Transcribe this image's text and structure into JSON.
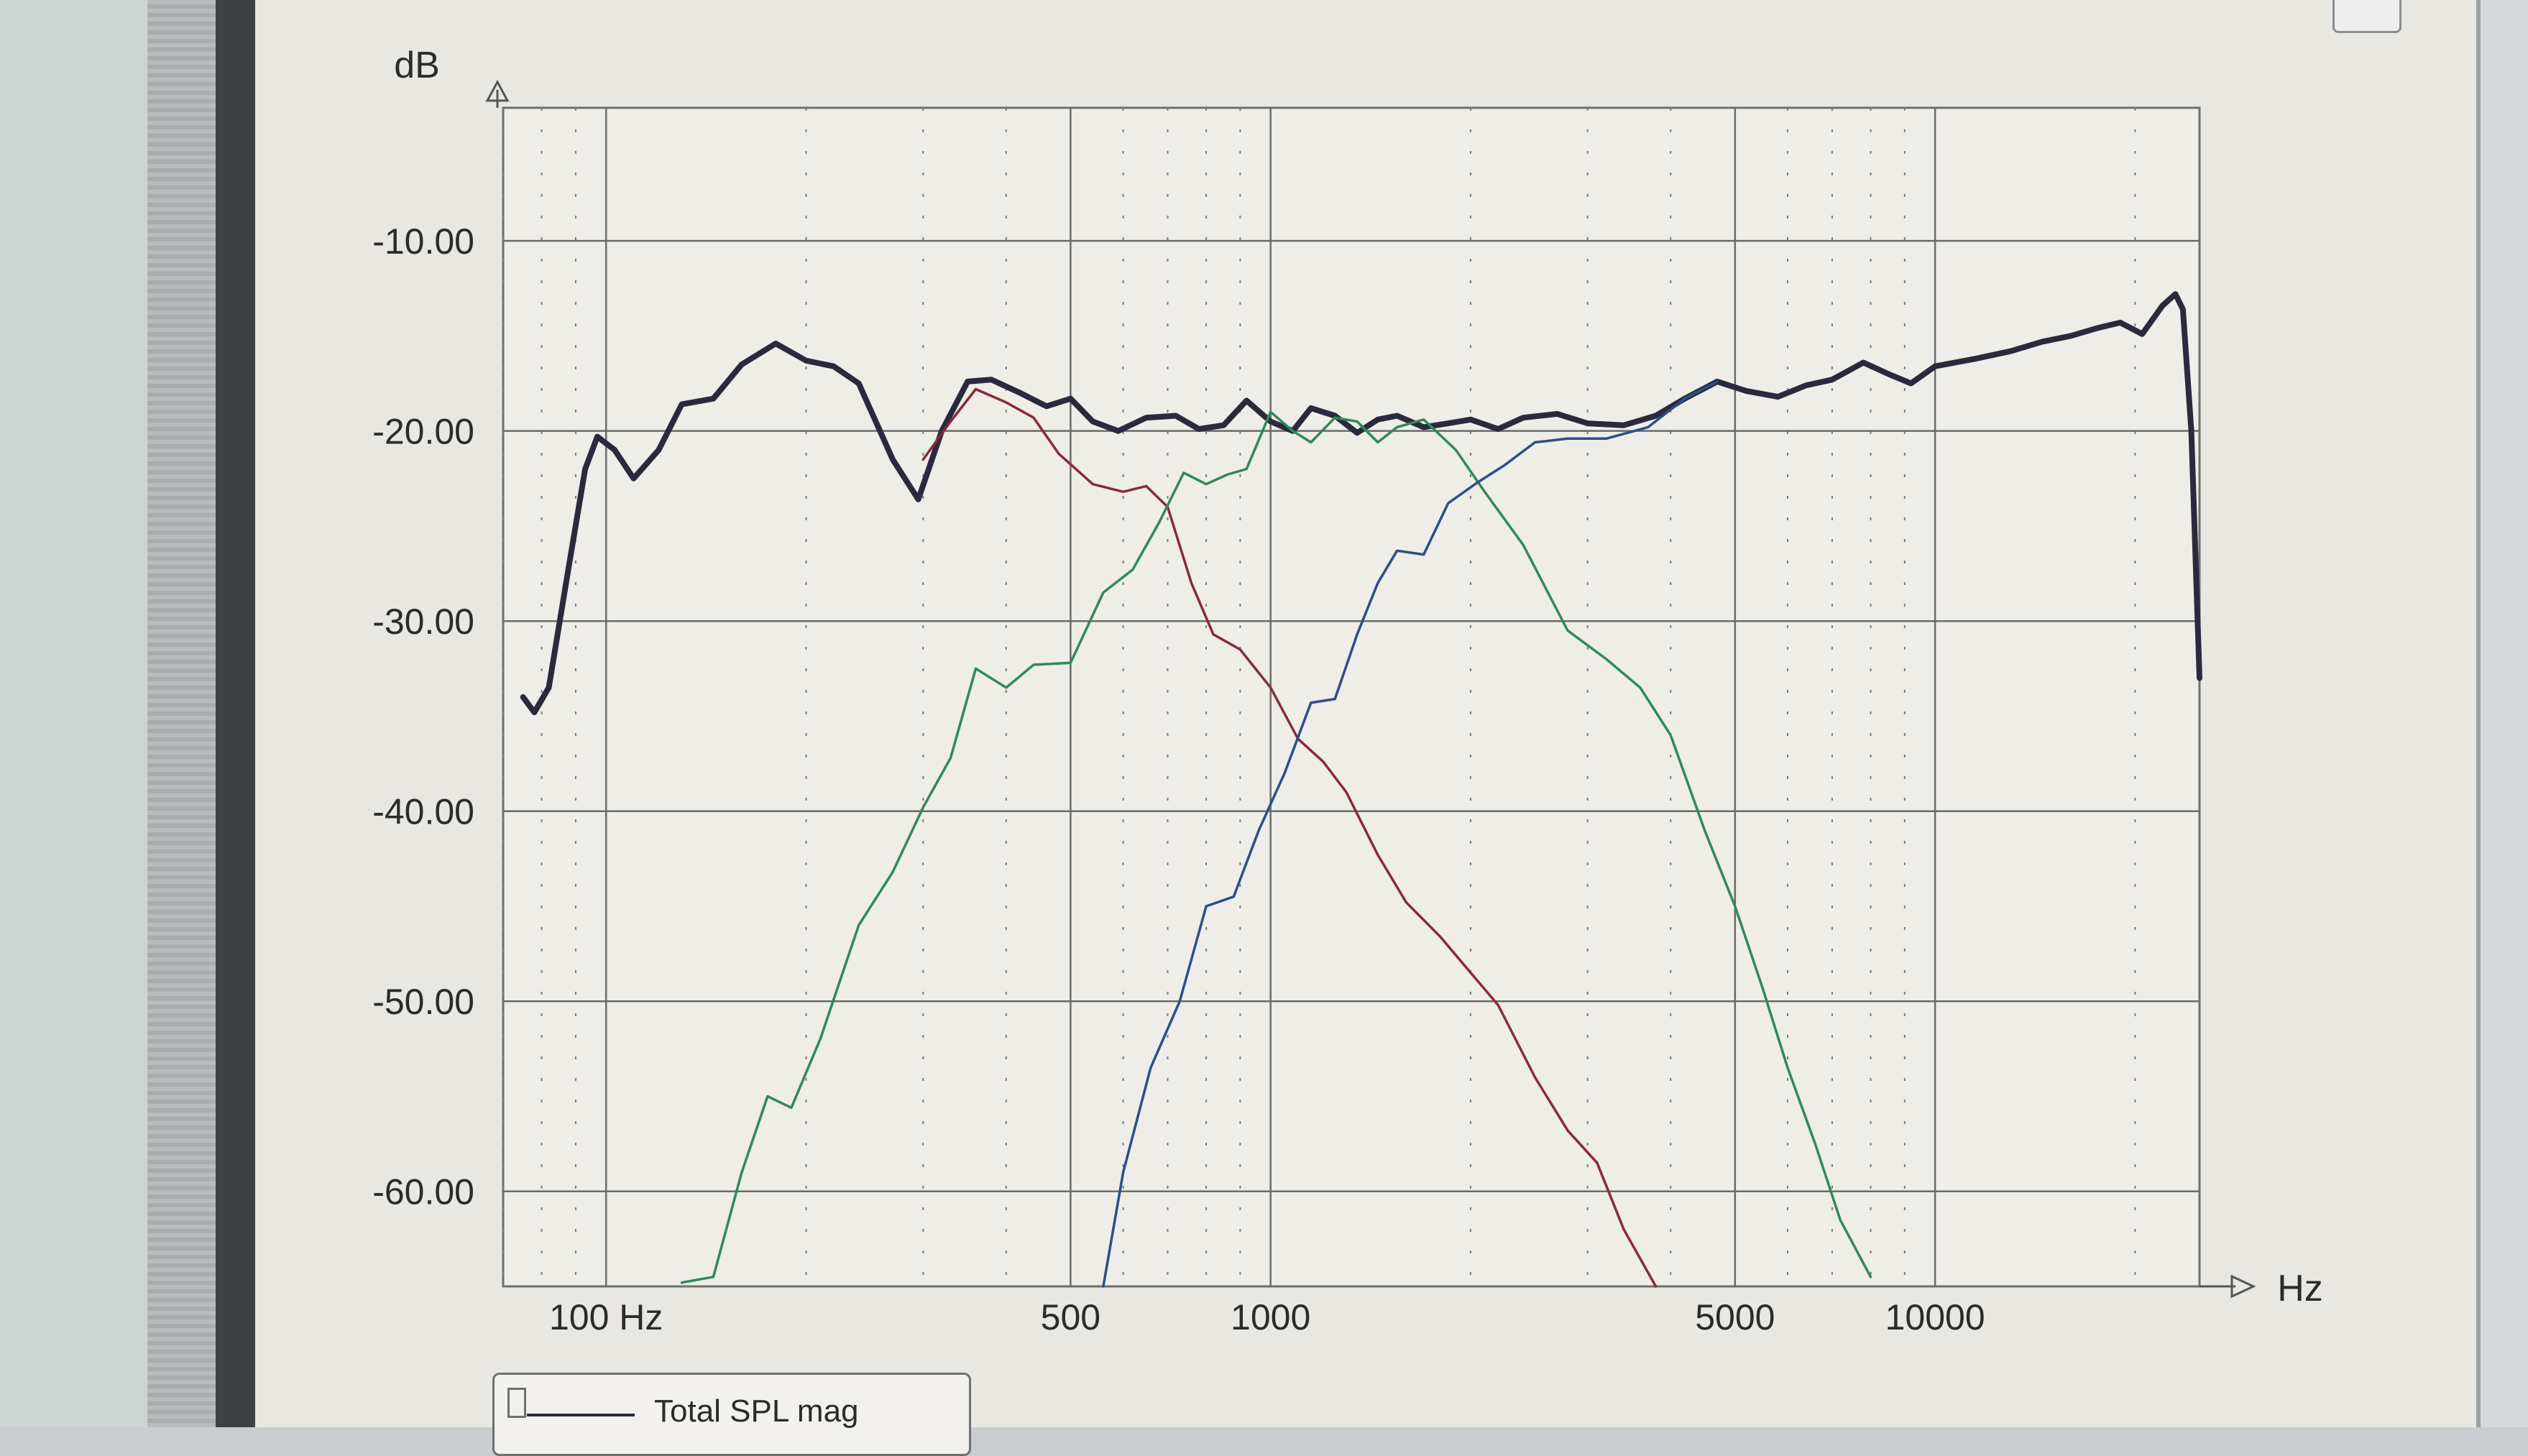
{
  "chart_data": {
    "type": "line",
    "title": "",
    "xlabel": "Hz",
    "ylabel": "dB",
    "x_scale": "log",
    "xlim": [
      70,
      25000
    ],
    "ylim": [
      -65,
      -3
    ],
    "x_ticks": [
      100,
      500,
      1000,
      5000,
      10000
    ],
    "x_tick_labels": [
      "100 Hz",
      "500",
      "1000",
      "5000",
      "10000"
    ],
    "y_ticks": [
      -10,
      -20,
      -30,
      -40,
      -50,
      -60
    ],
    "y_tick_labels": [
      "-10.00",
      "-20.00",
      "-30.00",
      "-40.00",
      "-50.00",
      "-60.00"
    ],
    "grid": true,
    "series": [
      {
        "name": "Total SPL  mag",
        "color": "#2a2a3c",
        "points": [
          [
            75,
            -34
          ],
          [
            78,
            -34.8
          ],
          [
            82,
            -33.5
          ],
          [
            88,
            -27
          ],
          [
            93,
            -22
          ],
          [
            97,
            -20.3
          ],
          [
            103,
            -21
          ],
          [
            110,
            -22.5
          ],
          [
            120,
            -21
          ],
          [
            130,
            -18.6
          ],
          [
            145,
            -18.3
          ],
          [
            160,
            -16.5
          ],
          [
            180,
            -15.4
          ],
          [
            200,
            -16.3
          ],
          [
            220,
            -16.6
          ],
          [
            240,
            -17.5
          ],
          [
            270,
            -21.5
          ],
          [
            295,
            -23.6
          ],
          [
            320,
            -20
          ],
          [
            350,
            -17.4
          ],
          [
            380,
            -17.3
          ],
          [
            420,
            -18
          ],
          [
            460,
            -18.7
          ],
          [
            500,
            -18.3
          ],
          [
            540,
            -19.5
          ],
          [
            590,
            -20
          ],
          [
            650,
            -19.3
          ],
          [
            720,
            -19.2
          ],
          [
            780,
            -19.9
          ],
          [
            850,
            -19.7
          ],
          [
            920,
            -18.4
          ],
          [
            1000,
            -19.5
          ],
          [
            1080,
            -20
          ],
          [
            1150,
            -18.8
          ],
          [
            1250,
            -19.2
          ],
          [
            1350,
            -20.1
          ],
          [
            1450,
            -19.4
          ],
          [
            1550,
            -19.2
          ],
          [
            1700,
            -19.8
          ],
          [
            1850,
            -19.6
          ],
          [
            2000,
            -19.4
          ],
          [
            2200,
            -19.9
          ],
          [
            2400,
            -19.3
          ],
          [
            2700,
            -19.1
          ],
          [
            3000,
            -19.6
          ],
          [
            3400,
            -19.7
          ],
          [
            3800,
            -19.2
          ],
          [
            4200,
            -18.3
          ],
          [
            4700,
            -17.4
          ],
          [
            5200,
            -17.9
          ],
          [
            5800,
            -18.2
          ],
          [
            6400,
            -17.6
          ],
          [
            7000,
            -17.3
          ],
          [
            7800,
            -16.4
          ],
          [
            8500,
            -17
          ],
          [
            9200,
            -17.5
          ],
          [
            10000,
            -16.6
          ],
          [
            11500,
            -16.2
          ],
          [
            13000,
            -15.8
          ],
          [
            14500,
            -15.3
          ],
          [
            16000,
            -15
          ],
          [
            17500,
            -14.6
          ],
          [
            19000,
            -14.3
          ],
          [
            20500,
            -14.9
          ],
          [
            22000,
            -13.4
          ],
          [
            23000,
            -12.8
          ],
          [
            23600,
            -13.6
          ],
          [
            24300,
            -20
          ],
          [
            25000,
            -33
          ]
        ]
      },
      {
        "name": "",
        "color": "#8a2a3a",
        "points": [
          [
            300,
            -21.5
          ],
          [
            330,
            -19.5
          ],
          [
            360,
            -17.8
          ],
          [
            400,
            -18.5
          ],
          [
            440,
            -19.3
          ],
          [
            480,
            -21.2
          ],
          [
            540,
            -22.8
          ],
          [
            600,
            -23.2
          ],
          [
            650,
            -22.9
          ],
          [
            700,
            -24
          ],
          [
            760,
            -28
          ],
          [
            820,
            -30.7
          ],
          [
            900,
            -31.5
          ],
          [
            1000,
            -33.5
          ],
          [
            1100,
            -36.2
          ],
          [
            1200,
            -37.4
          ],
          [
            1300,
            -39
          ],
          [
            1450,
            -42.3
          ],
          [
            1600,
            -44.8
          ],
          [
            1800,
            -46.6
          ],
          [
            2000,
            -48.5
          ],
          [
            2200,
            -50.2
          ],
          [
            2500,
            -54
          ],
          [
            2800,
            -56.8
          ],
          [
            3100,
            -58.5
          ],
          [
            3400,
            -62
          ],
          [
            3800,
            -65
          ]
        ]
      },
      {
        "name": "",
        "color": "#2f8a5a",
        "points": [
          [
            130,
            -64.8
          ],
          [
            145,
            -64.5
          ],
          [
            160,
            -59
          ],
          [
            175,
            -55
          ],
          [
            190,
            -55.6
          ],
          [
            210,
            -52
          ],
          [
            240,
            -46
          ],
          [
            270,
            -43.2
          ],
          [
            300,
            -39.8
          ],
          [
            330,
            -37.2
          ],
          [
            360,
            -32.5
          ],
          [
            400,
            -33.5
          ],
          [
            440,
            -32.3
          ],
          [
            500,
            -32.2
          ],
          [
            560,
            -28.5
          ],
          [
            620,
            -27.3
          ],
          [
            680,
            -24.8
          ],
          [
            740,
            -22.2
          ],
          [
            800,
            -22.8
          ],
          [
            860,
            -22.3
          ],
          [
            920,
            -22
          ],
          [
            1000,
            -19
          ],
          [
            1080,
            -20
          ],
          [
            1150,
            -20.6
          ],
          [
            1250,
            -19.3
          ],
          [
            1350,
            -19.5
          ],
          [
            1450,
            -20.6
          ],
          [
            1550,
            -19.8
          ],
          [
            1700,
            -19.4
          ],
          [
            1900,
            -21
          ],
          [
            2100,
            -23.2
          ],
          [
            2400,
            -26
          ],
          [
            2800,
            -30.5
          ],
          [
            3200,
            -32
          ],
          [
            3600,
            -33.5
          ],
          [
            4000,
            -36
          ],
          [
            4500,
            -41
          ],
          [
            5000,
            -45
          ],
          [
            5500,
            -49.3
          ],
          [
            6000,
            -53.5
          ],
          [
            6600,
            -57.5
          ],
          [
            7200,
            -61.5
          ],
          [
            8000,
            -64.5
          ]
        ]
      },
      {
        "name": "",
        "color": "#2c4f86",
        "points": [
          [
            560,
            -65
          ],
          [
            600,
            -59
          ],
          [
            660,
            -53.5
          ],
          [
            730,
            -50
          ],
          [
            800,
            -45
          ],
          [
            880,
            -44.5
          ],
          [
            960,
            -41
          ],
          [
            1050,
            -38
          ],
          [
            1150,
            -34.3
          ],
          [
            1250,
            -34.1
          ],
          [
            1350,
            -30.7
          ],
          [
            1450,
            -28
          ],
          [
            1550,
            -26.3
          ],
          [
            1700,
            -26.5
          ],
          [
            1850,
            -23.8
          ],
          [
            2050,
            -22.7
          ],
          [
            2250,
            -21.8
          ],
          [
            2500,
            -20.6
          ],
          [
            2800,
            -20.4
          ],
          [
            3200,
            -20.4
          ],
          [
            3700,
            -19.8
          ],
          [
            4200,
            -18.3
          ],
          [
            4700,
            -17.4
          ]
        ]
      }
    ]
  },
  "legend": {
    "label": "Total SPL  mag"
  }
}
